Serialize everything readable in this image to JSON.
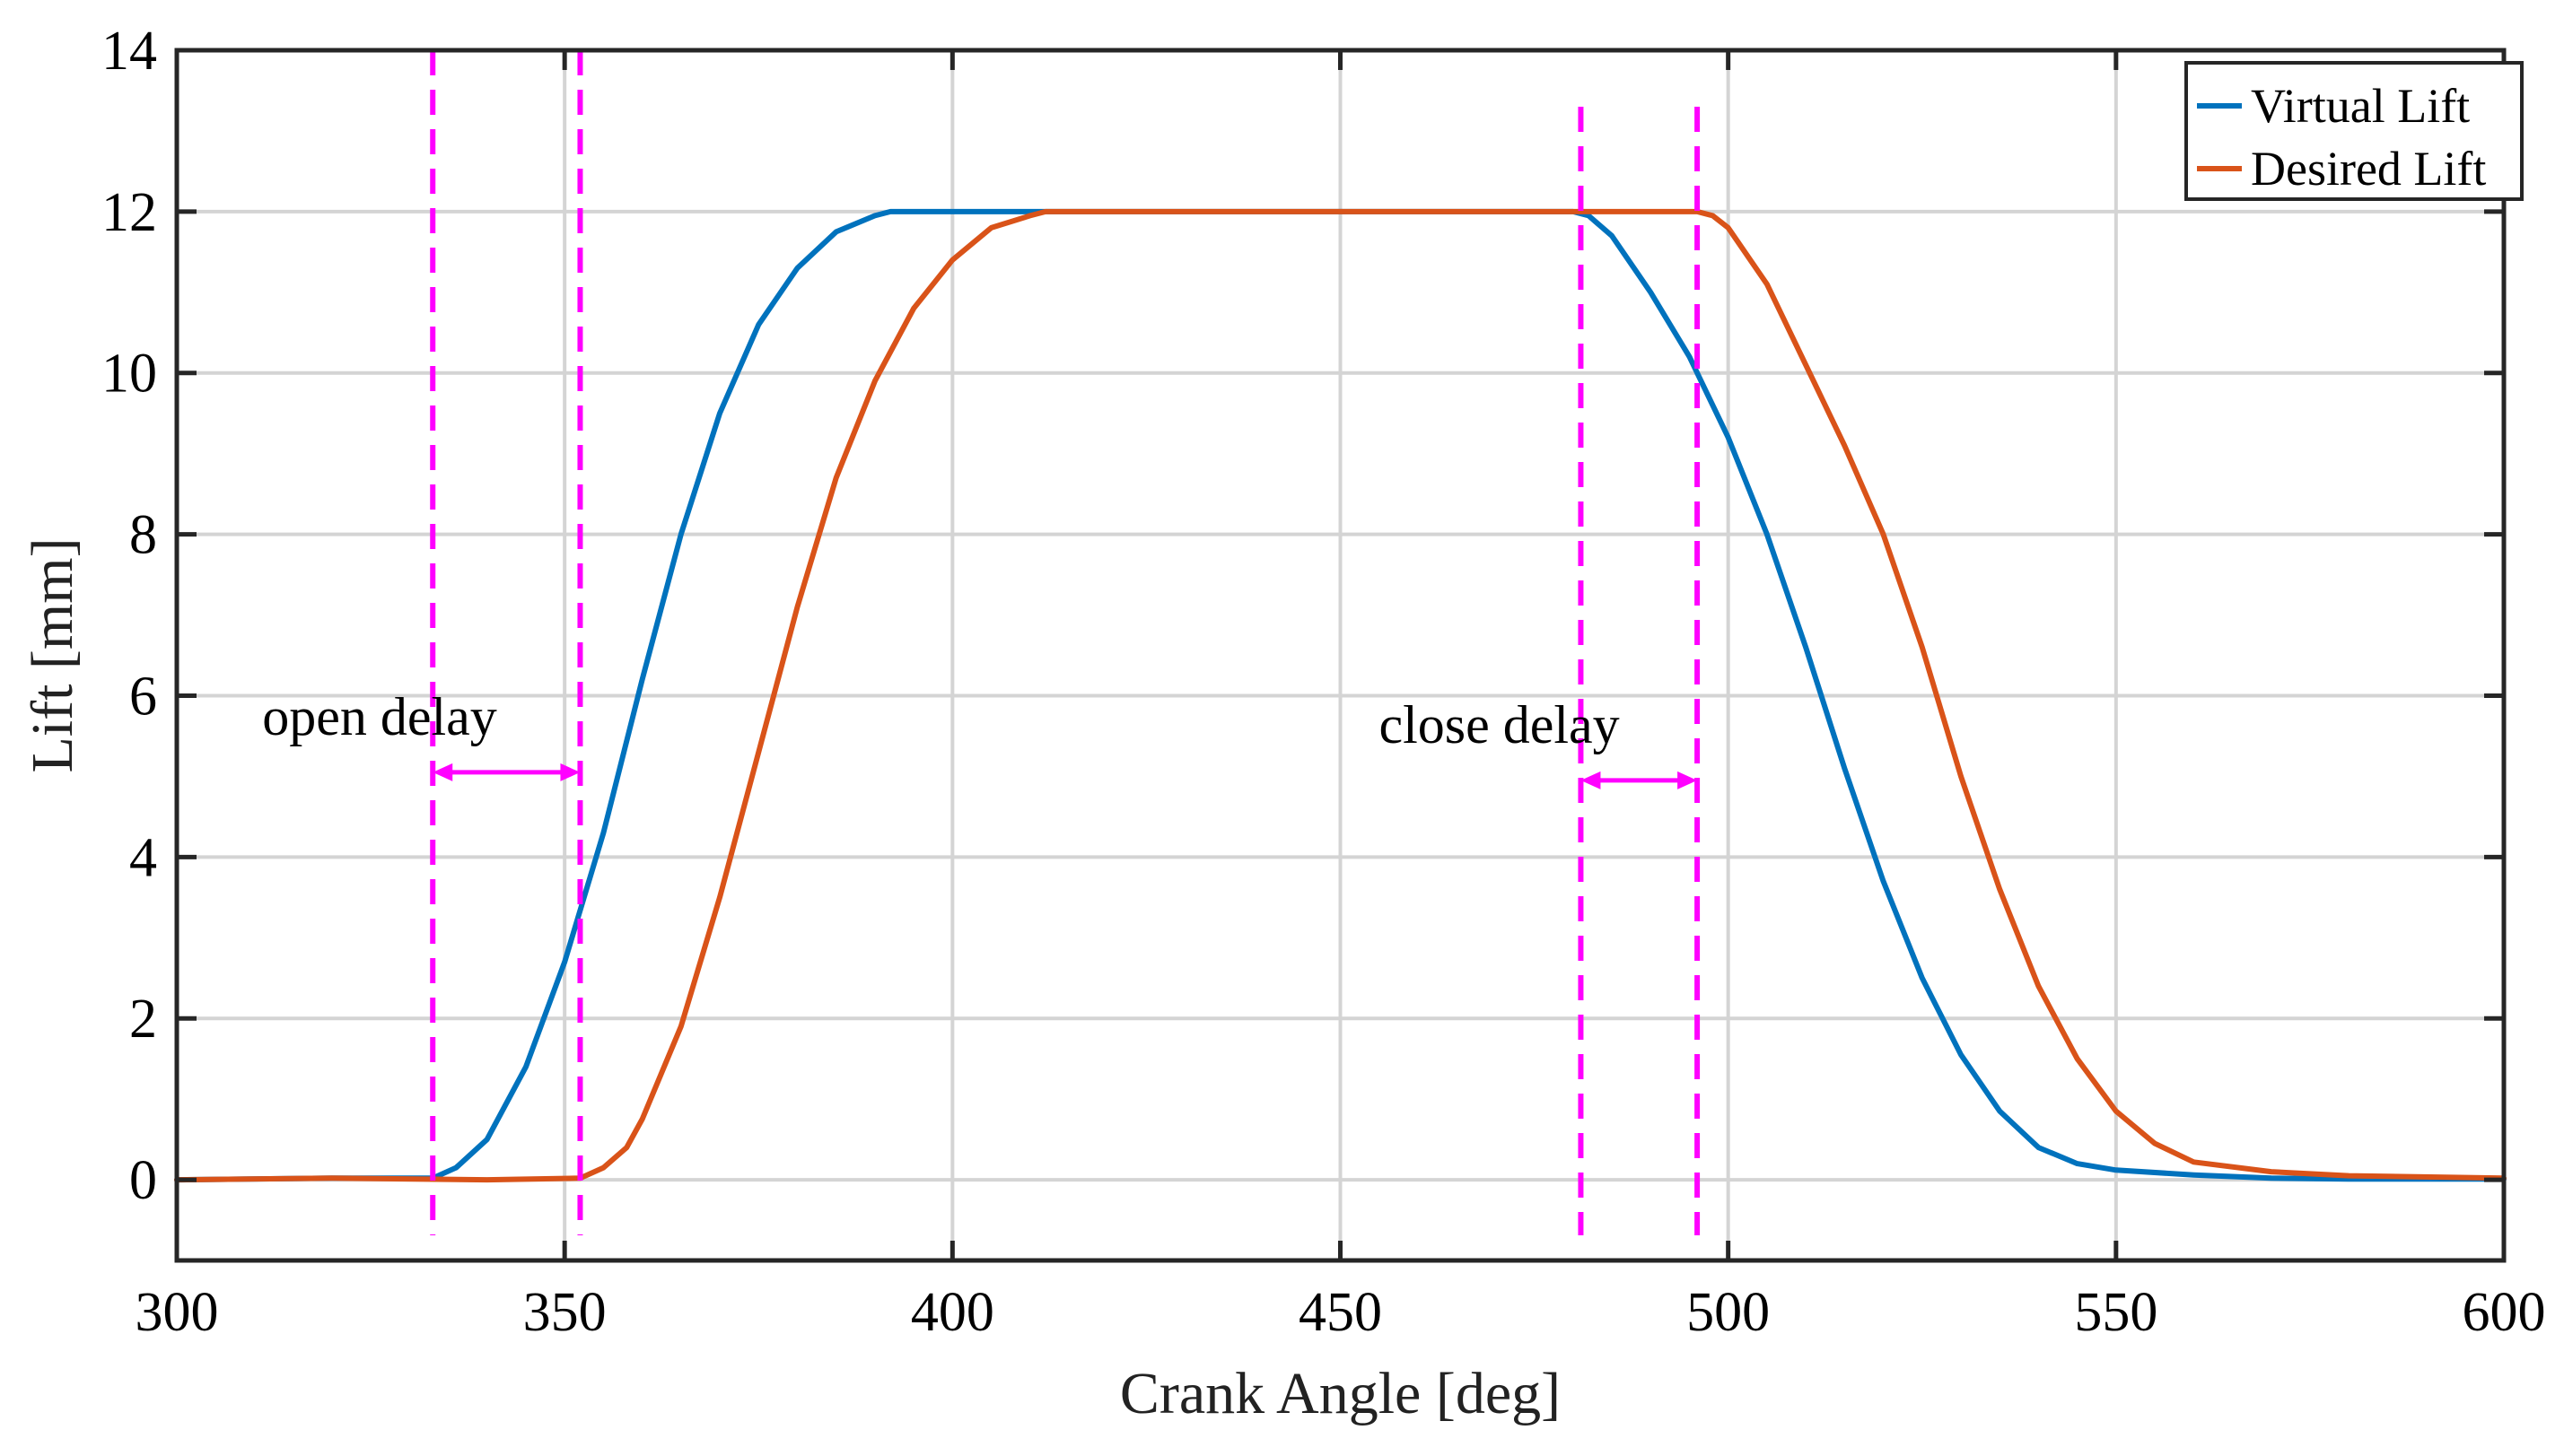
{
  "chart_data": {
    "type": "line",
    "title": "",
    "xlabel": "Crank Angle [deg]",
    "ylabel": "Lift [mm]",
    "xlim": [
      300,
      600
    ],
    "ylim": [
      -1,
      14
    ],
    "xticks": [
      300,
      350,
      400,
      450,
      500,
      550,
      600
    ],
    "yticks": [
      0,
      2,
      4,
      6,
      8,
      10,
      12,
      14
    ],
    "grid": true,
    "legend_position": "top-right",
    "series": [
      {
        "name": "Virtual Lift",
        "color": "#0072BD",
        "x": [
          300,
          320,
          333,
          336,
          340,
          345,
          350,
          355,
          360,
          365,
          370,
          375,
          380,
          385,
          390,
          392,
          400,
          420,
          450,
          480,
          482,
          485,
          490,
          495,
          500,
          505,
          510,
          515,
          520,
          525,
          530,
          535,
          540,
          545,
          550,
          560,
          570,
          580,
          600
        ],
        "y": [
          0,
          0.02,
          0.02,
          0.15,
          0.5,
          1.4,
          2.7,
          4.3,
          6.2,
          8.0,
          9.5,
          10.6,
          11.3,
          11.75,
          11.95,
          12,
          12,
          12,
          12,
          12,
          11.95,
          11.7,
          11.0,
          10.2,
          9.2,
          8.0,
          6.6,
          5.1,
          3.7,
          2.5,
          1.55,
          0.85,
          0.4,
          0.2,
          0.12,
          0.06,
          0.02,
          0.01,
          0.01
        ]
      },
      {
        "name": "Desired Lift",
        "color": "#D95319",
        "x": [
          300,
          320,
          340,
          352,
          355,
          358,
          360,
          365,
          370,
          375,
          380,
          385,
          390,
          395,
          400,
          405,
          410,
          412,
          450,
          480,
          496,
          498,
          500,
          505,
          510,
          515,
          520,
          525,
          530,
          535,
          540,
          545,
          550,
          555,
          560,
          570,
          580,
          600
        ],
        "y": [
          0,
          0.02,
          0,
          0.02,
          0.15,
          0.4,
          0.75,
          1.9,
          3.5,
          5.3,
          7.1,
          8.7,
          9.9,
          10.8,
          11.4,
          11.8,
          11.95,
          12,
          12,
          12,
          12,
          11.95,
          11.8,
          11.1,
          10.1,
          9.1,
          8.0,
          6.6,
          5.0,
          3.6,
          2.4,
          1.5,
          0.85,
          0.45,
          0.22,
          0.1,
          0.05,
          0.02
        ]
      }
    ],
    "vertical_markers": [
      333,
      352,
      481,
      496
    ],
    "annotations": [
      {
        "text": "open delay",
        "from_x": 333,
        "to_x": 352,
        "arrow_y": 5.05
      },
      {
        "text": "close delay",
        "from_x": 481,
        "to_x": 496,
        "arrow_y": 4.95
      }
    ],
    "marker_color": "#FF00FF"
  }
}
